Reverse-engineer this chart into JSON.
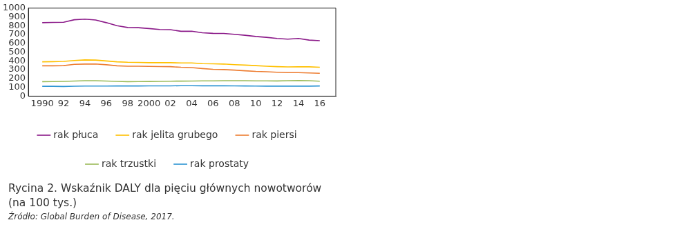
{
  "chart_data": {
    "type": "line",
    "title": "Rycina 2. Wskaźnik DALY dla pięciu głównych nowotworów (na 100 tys.)",
    "annotations": [
      "Źródło: Global Burden of Disease, 2017."
    ],
    "x": [
      1990,
      1991,
      1992,
      1993,
      1994,
      1995,
      1996,
      1997,
      1998,
      1999,
      2000,
      2001,
      2002,
      2003,
      2004,
      2005,
      2006,
      2007,
      2008,
      2009,
      2010,
      2011,
      2012,
      2013,
      2014,
      2015,
      2016
    ],
    "xlim": [
      1988.7,
      2017.5
    ],
    "xticks": [
      {
        "value": 1990,
        "label": "1990"
      },
      {
        "value": 1992,
        "label": "92"
      },
      {
        "value": 1994,
        "label": "94"
      },
      {
        "value": 1996,
        "label": "96"
      },
      {
        "value": 1998,
        "label": "98"
      },
      {
        "value": 2000,
        "label": "2000"
      },
      {
        "value": 2002,
        "label": "02"
      },
      {
        "value": 2004,
        "label": "04"
      },
      {
        "value": 2006,
        "label": "06"
      },
      {
        "value": 2008,
        "label": "08"
      },
      {
        "value": 2010,
        "label": "10"
      },
      {
        "value": 2012,
        "label": "12"
      },
      {
        "value": 2014,
        "label": "14"
      },
      {
        "value": 2016,
        "label": "16"
      }
    ],
    "ylim": [
      0,
      1000
    ],
    "yticks": [
      0,
      100,
      200,
      300,
      400,
      500,
      600,
      700,
      800,
      900,
      1000
    ],
    "grid": false,
    "legend": "bottom",
    "marker": "none",
    "line_style": "solid",
    "series": [
      {
        "name": "rak płuca",
        "color": "#8b1a89",
        "values": [
          835,
          838,
          840,
          868,
          875,
          865,
          835,
          800,
          780,
          778,
          768,
          758,
          755,
          737,
          738,
          720,
          713,
          712,
          702,
          692,
          678,
          668,
          655,
          648,
          655,
          637,
          630
        ]
      },
      {
        "name": "rak jelita grubego",
        "color": "#ffc000",
        "values": [
          390,
          392,
          395,
          405,
          412,
          410,
          400,
          390,
          385,
          383,
          380,
          380,
          380,
          377,
          377,
          370,
          368,
          365,
          358,
          353,
          347,
          340,
          335,
          332,
          333,
          333,
          328
        ]
      },
      {
        "name": "rak piersi",
        "color": "#ed7d31",
        "values": [
          345,
          345,
          347,
          362,
          365,
          365,
          357,
          345,
          340,
          340,
          338,
          336,
          335,
          328,
          325,
          314,
          305,
          302,
          296,
          288,
          281,
          278,
          272,
          268,
          268,
          264,
          260
        ]
      },
      {
        "name": "rak trzustki",
        "color": "#9bbb59",
        "values": [
          165,
          166,
          168,
          172,
          175,
          175,
          172,
          168,
          165,
          166,
          167,
          168,
          170,
          171,
          172,
          173,
          174,
          175,
          175,
          175,
          174,
          173,
          173,
          175,
          177,
          175,
          170
        ]
      },
      {
        "name": "rak prostaty",
        "color": "#2e95d3",
        "values": [
          112,
          112,
          110,
          113,
          115,
          115,
          115,
          116,
          116,
          116,
          117,
          117,
          117,
          119,
          119,
          118,
          118,
          118,
          117,
          116,
          115,
          114,
          114,
          114,
          114,
          114,
          116
        ]
      }
    ]
  }
}
